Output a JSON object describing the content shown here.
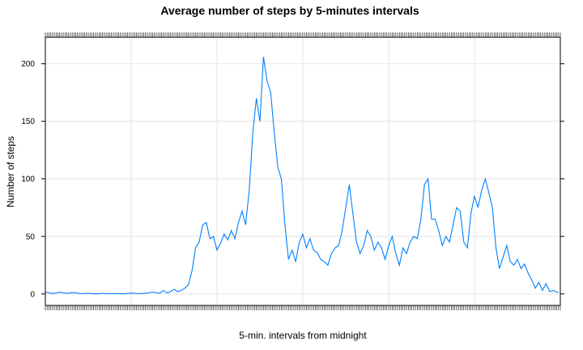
{
  "chart_data": {
    "type": "line",
    "title": "Average number of steps by 5-minutes intervals",
    "xlabel": "5-min. intervals from midnight",
    "ylabel": "Number of steps",
    "xlim": [
      0,
      288
    ],
    "ylim": [
      -10,
      223
    ],
    "y_ticks": [
      0,
      50,
      100,
      150,
      200
    ],
    "grid": true,
    "series": [
      {
        "name": "",
        "x": [
          0,
          4,
          8,
          12,
          16,
          20,
          24,
          28,
          32,
          36,
          40,
          44,
          48,
          52,
          56,
          60,
          64,
          66,
          68,
          70,
          72,
          74,
          76,
          78,
          80,
          82,
          84,
          86,
          88,
          90,
          92,
          94,
          96,
          98,
          100,
          102,
          104,
          106,
          108,
          110,
          112,
          114,
          116,
          118,
          120,
          122,
          124,
          126,
          128,
          130,
          132,
          134,
          136,
          138,
          140,
          142,
          144,
          146,
          148,
          150,
          152,
          154,
          156,
          158,
          160,
          162,
          164,
          166,
          168,
          170,
          172,
          174,
          176,
          178,
          180,
          182,
          184,
          186,
          188,
          190,
          192,
          194,
          196,
          198,
          200,
          202,
          204,
          206,
          208,
          210,
          212,
          214,
          216,
          218,
          220,
          222,
          224,
          226,
          228,
          230,
          232,
          234,
          236,
          238,
          240,
          242,
          244,
          246,
          248,
          250,
          252,
          254,
          256,
          258,
          260,
          262,
          264,
          266,
          268,
          270,
          272,
          274,
          276,
          278,
          280,
          282,
          284,
          287
        ],
        "values": [
          1.7,
          0.3,
          1.5,
          0.5,
          1.2,
          0.2,
          0.5,
          0.1,
          0.4,
          0.2,
          0.3,
          0.1,
          0.8,
          0.2,
          0.5,
          1.6,
          0.5,
          3,
          1,
          2,
          4,
          2,
          3,
          5,
          8,
          20,
          40,
          45,
          60,
          62,
          48,
          50,
          38,
          44,
          52,
          47,
          55,
          48,
          62,
          72,
          60,
          90,
          140,
          170,
          150,
          206,
          185,
          175,
          140,
          110,
          100,
          60,
          30,
          38,
          28,
          45,
          52,
          40,
          48,
          38,
          36,
          30,
          28,
          25,
          35,
          40,
          42,
          55,
          75,
          95,
          70,
          45,
          35,
          42,
          55,
          50,
          38,
          45,
          40,
          30,
          42,
          50,
          35,
          25,
          40,
          35,
          45,
          50,
          48,
          65,
          95,
          100,
          65,
          65,
          55,
          42,
          50,
          45,
          60,
          75,
          72,
          45,
          40,
          70,
          85,
          75,
          90,
          100,
          88,
          75,
          40,
          22,
          32,
          42,
          28,
          25,
          30,
          22,
          26,
          18,
          12,
          5,
          10,
          3,
          9,
          2,
          3,
          1
        ]
      }
    ]
  }
}
